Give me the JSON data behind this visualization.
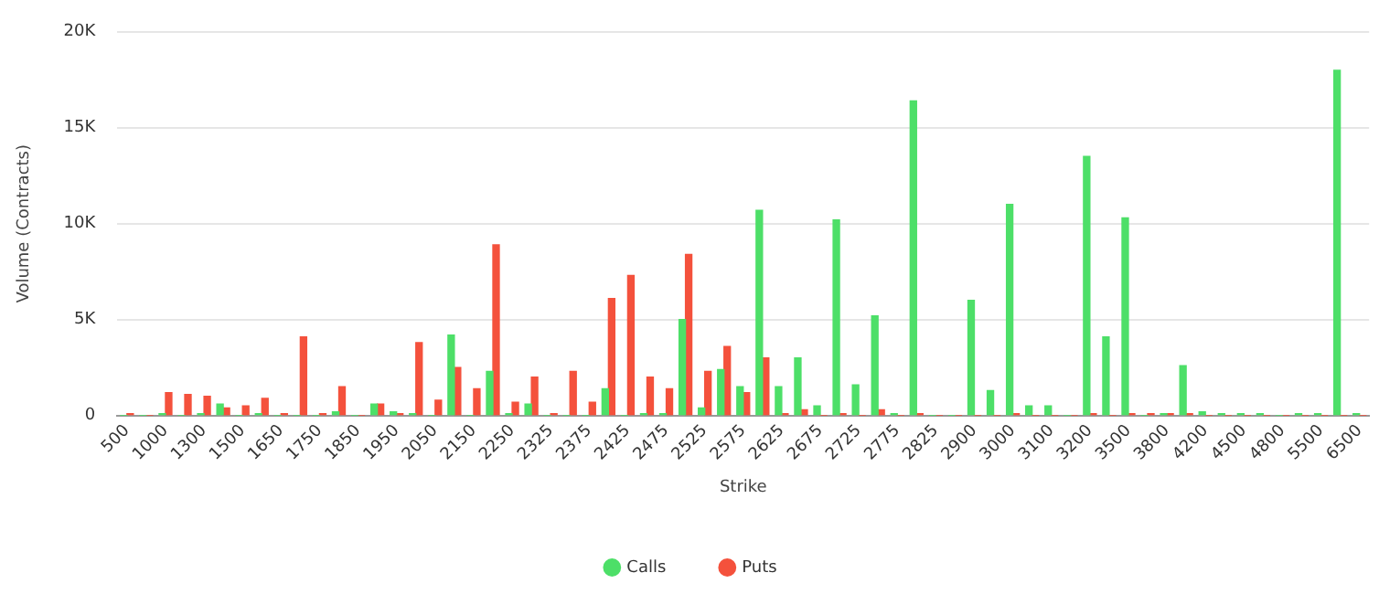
{
  "chart_data": {
    "type": "bar",
    "xlabel": "Strike",
    "ylabel": "Volume (Contracts)",
    "categories": [
      "500",
      null,
      "1000",
      null,
      "1300",
      null,
      "1500",
      null,
      "1650",
      null,
      "1750",
      null,
      "1850",
      null,
      "1950",
      null,
      "2050",
      null,
      "2150",
      null,
      "2250",
      null,
      "2325",
      null,
      "2375",
      null,
      "2425",
      null,
      "2475",
      null,
      "2525",
      null,
      "2575",
      null,
      "2625",
      null,
      "2675",
      null,
      "2725",
      null,
      "2775",
      null,
      "2825",
      null,
      "2900",
      null,
      "3000",
      null,
      "3100",
      null,
      "3200",
      null,
      "3500",
      null,
      "3800",
      null,
      "4200",
      null,
      "4500",
      null,
      "4800",
      null,
      "5500",
      null,
      "6500"
    ],
    "series": [
      {
        "name": "Calls",
        "color": "#4ddf68",
        "values": [
          0,
          0,
          100,
          0,
          100,
          600,
          0,
          100,
          0,
          0,
          0,
          200,
          0,
          600,
          200,
          100,
          0,
          4200,
          0,
          2300,
          100,
          600,
          0,
          0,
          0,
          1400,
          0,
          100,
          100,
          5000,
          400,
          2400,
          1500,
          10700,
          1500,
          3000,
          500,
          10200,
          1600,
          5200,
          100,
          16400,
          0,
          0,
          6000,
          1300,
          11000,
          500,
          500,
          0,
          13500,
          4100,
          10300,
          0,
          100,
          2600,
          200,
          100,
          100,
          100,
          0,
          100,
          100,
          18000,
          100
        ]
      },
      {
        "name": "Puts",
        "color": "#f4513c",
        "values": [
          100,
          0,
          1200,
          1100,
          1000,
          400,
          500,
          900,
          100,
          4100,
          100,
          1500,
          0,
          600,
          100,
          3800,
          800,
          2500,
          1400,
          8900,
          700,
          2000,
          100,
          2300,
          700,
          6100,
          7300,
          2000,
          1400,
          8400,
          2300,
          3600,
          1200,
          3000,
          100,
          300,
          0,
          100,
          0,
          300,
          0,
          100,
          0,
          0,
          0,
          0,
          100,
          0,
          0,
          0,
          100,
          0,
          100,
          100,
          100,
          100,
          0,
          0,
          0,
          0,
          0,
          0,
          0,
          0,
          0
        ]
      }
    ],
    "ylim": [
      0,
      20000
    ],
    "yticks": [
      0,
      {
        "value": 5000,
        "label": "5K"
      },
      {
        "value": 10000,
        "label": "10K"
      },
      {
        "value": 15000,
        "label": "15K"
      },
      {
        "value": 20000,
        "label": "20K"
      }
    ],
    "grid": "y",
    "legend": "bottom",
    "marker": "circle"
  }
}
